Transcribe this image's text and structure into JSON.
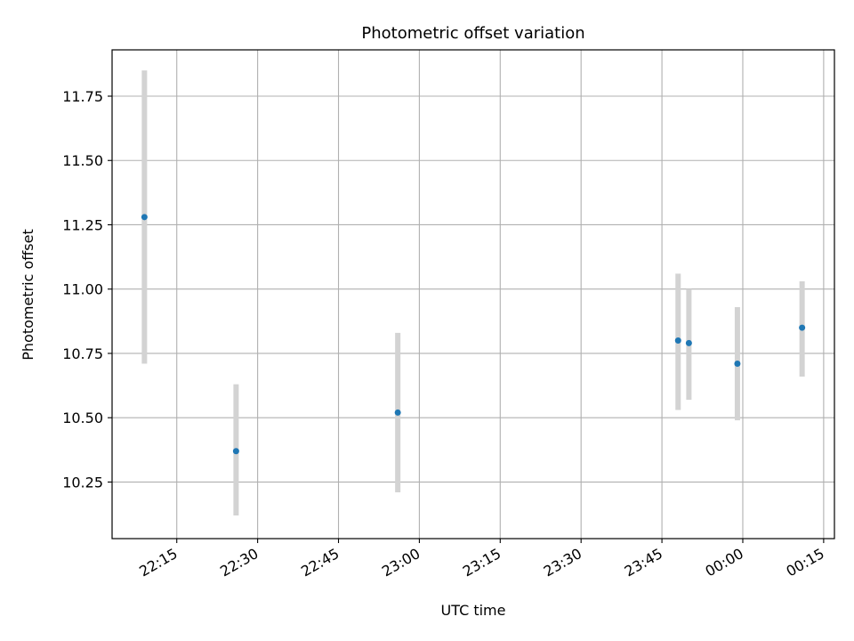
{
  "chart_data": {
    "type": "scatter",
    "title": "Photometric offset variation",
    "xlabel": "UTC time",
    "ylabel": "Photometric offset",
    "xlim": [
      "22:03",
      "00:17"
    ],
    "ylim": [
      10.03,
      11.93
    ],
    "grid": true,
    "x_ticks": [
      "22:15",
      "22:30",
      "22:45",
      "23:00",
      "23:15",
      "23:30",
      "23:45",
      "00:00",
      "00:15"
    ],
    "y_ticks": [
      "10.25",
      "10.50",
      "10.75",
      "11.00",
      "11.25",
      "11.50",
      "11.75"
    ],
    "marker_color": "#1f77b4",
    "errorbar_color": "#d3d3d3",
    "points": [
      {
        "x": "22:09",
        "y": 11.28,
        "yerr_low": 10.71,
        "yerr_high": 11.85
      },
      {
        "x": "22:26",
        "y": 10.37,
        "yerr_low": 10.12,
        "yerr_high": 10.63
      },
      {
        "x": "22:56",
        "y": 10.52,
        "yerr_low": 10.21,
        "yerr_high": 10.83
      },
      {
        "x": "23:48",
        "y": 10.8,
        "yerr_low": 10.53,
        "yerr_high": 11.06
      },
      {
        "x": "23:50",
        "y": 10.79,
        "yerr_low": 10.57,
        "yerr_high": 11.0
      },
      {
        "x": "23:59",
        "y": 10.71,
        "yerr_low": 10.49,
        "yerr_high": 10.93
      },
      {
        "x": "00:11",
        "y": 10.85,
        "yerr_low": 10.66,
        "yerr_high": 11.03
      }
    ]
  }
}
